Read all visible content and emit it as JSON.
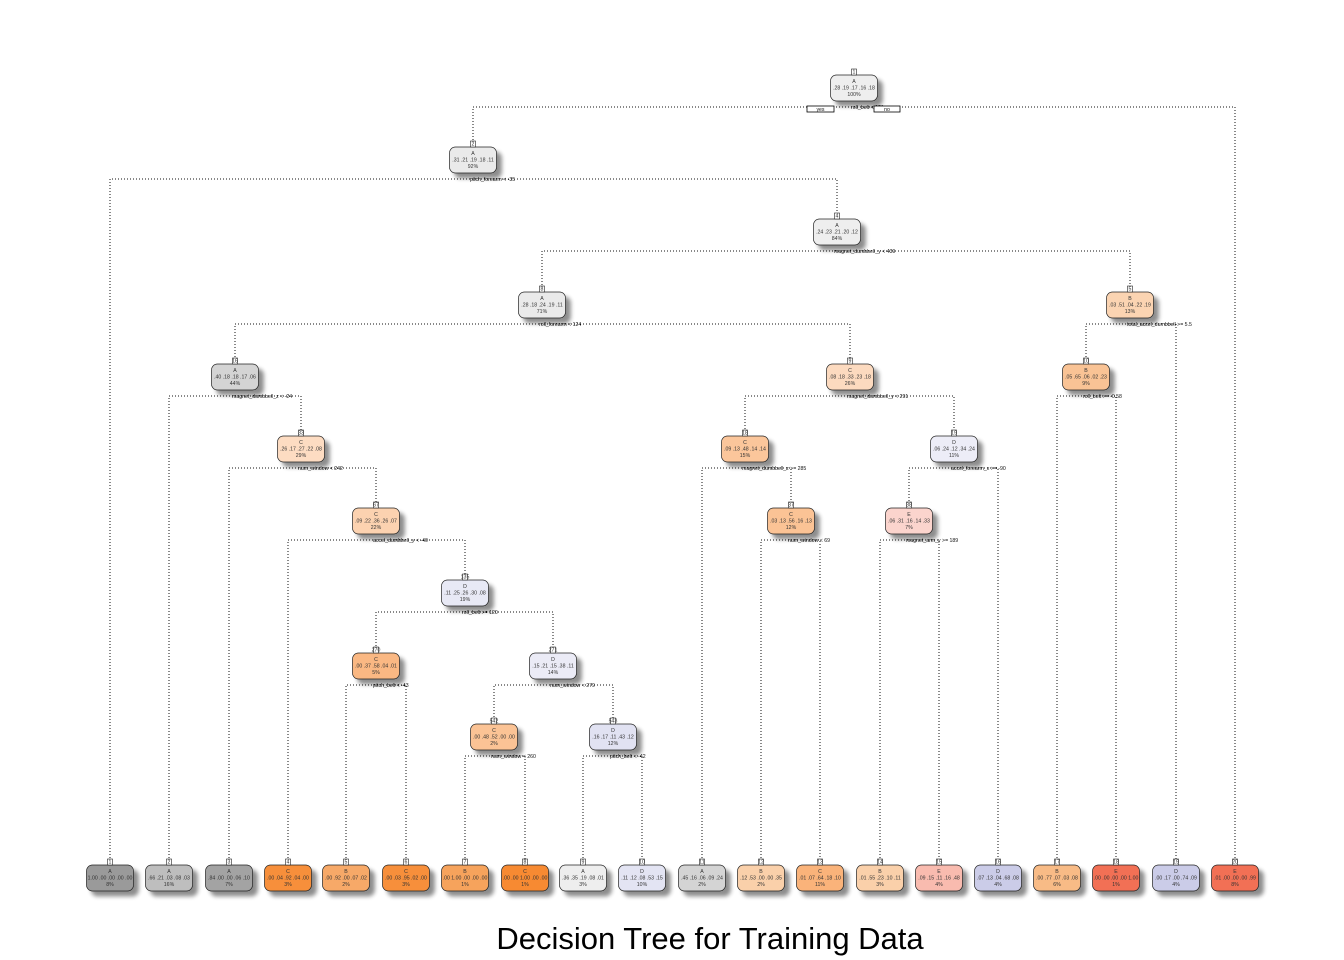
{
  "title": "Decision Tree for Training Data",
  "legend": {
    "yes": "yes",
    "no": "no"
  },
  "class_colors": {
    "A": "#9a9a9a",
    "B": "#f6a35b",
    "C": "#f78a32",
    "D": "#aeb0dc",
    "E": "#f26f55"
  },
  "nodes": [
    {
      "id": "n1",
      "num": "1",
      "cls": "A",
      "probs": ".28 .19 .17 .16 .18",
      "pct": "100%",
      "purity": 0.05
    },
    {
      "id": "n2",
      "num": "2",
      "cls": "A",
      "probs": ".31 .21 .19 .18 .11",
      "pct": "92%",
      "purity": 0.1
    },
    {
      "id": "n4",
      "num": "4",
      "cls": "A",
      "probs": ".24 .23 .21 .20 .12",
      "pct": "84%",
      "purity": 0.05
    },
    {
      "id": "n8",
      "num": "8",
      "cls": "A",
      "probs": ".28 .18 .24 .19 .11",
      "pct": "71%",
      "purity": 0.1
    },
    {
      "id": "n16",
      "num": "16",
      "cls": "A",
      "probs": ".40 .18 .18 .17 .06",
      "pct": "44%",
      "purity": 0.35
    },
    {
      "id": "n33",
      "num": "33",
      "cls": "C",
      "probs": ".26 .17 .27 .22 .08",
      "pct": "29%",
      "purity": 0.2
    },
    {
      "id": "n67",
      "num": "67",
      "cls": "C",
      "probs": ".09 .22 .36 .26 .07",
      "pct": "22%",
      "purity": 0.3
    },
    {
      "id": "n135",
      "num": "135",
      "cls": "D",
      "probs": ".11 .25 .26 .30 .08",
      "pct": "19%",
      "purity": 0.18
    },
    {
      "id": "n270",
      "num": "270",
      "cls": "C",
      "probs": ".00 .37 .58 .04 .01",
      "pct": "5%",
      "purity": 0.55
    },
    {
      "id": "n271",
      "num": "271",
      "cls": "D",
      "probs": ".15 .21 .15 .38 .11",
      "pct": "14%",
      "purity": 0.15
    },
    {
      "id": "n542",
      "num": "542",
      "cls": "C",
      "probs": ".00 .48 .52 .00 .00",
      "pct": "2%",
      "purity": 0.45
    },
    {
      "id": "n543",
      "num": "543",
      "cls": "D",
      "probs": ".16 .17 .11 .43 .12",
      "pct": "12%",
      "purity": 0.28
    },
    {
      "id": "n9",
      "num": "9",
      "cls": "C",
      "probs": ".08 .18 .33 .23 .18",
      "pct": "26%",
      "purity": 0.22
    },
    {
      "id": "n18",
      "num": "18",
      "cls": "C",
      "probs": ".09 .13 .48 .14 .14",
      "pct": "15%",
      "purity": 0.42
    },
    {
      "id": "n37",
      "num": "37",
      "cls": "C",
      "probs": ".03 .13 .56 .16 .13",
      "pct": "12%",
      "purity": 0.45
    },
    {
      "id": "n19",
      "num": "19",
      "cls": "D",
      "probs": ".06 .24 .12 .34 .24",
      "pct": "11%",
      "purity": 0.12
    },
    {
      "id": "n38",
      "num": "38",
      "cls": "E",
      "probs": ".06 .31 .16 .14 .33",
      "pct": "7%",
      "purity": 0.2
    },
    {
      "id": "n5",
      "num": "5",
      "cls": "B",
      "probs": ".03 .51 .04 .22 .19",
      "pct": "13%",
      "purity": 0.4
    },
    {
      "id": "n10",
      "num": "10",
      "cls": "B",
      "probs": ".05 .65 .06 .02 .23",
      "pct": "9%",
      "purity": 0.6
    },
    {
      "id": "n3",
      "num": "3",
      "cls": "E",
      "probs": ".01 .00 .00 .00 .99",
      "pct": "8%",
      "purity": 0.95
    },
    {
      "id": "l1",
      "num": "1",
      "cls": "A",
      "probs": "1.00 .00 .00 .00 .00",
      "pct": "8%",
      "purity": 1.0
    },
    {
      "id": "l2",
      "num": "2",
      "cls": "A",
      "probs": ".66 .21 .03 .08 .03",
      "pct": "16%",
      "purity": 0.6
    },
    {
      "id": "l3",
      "num": "3",
      "cls": "A",
      "probs": ".84 .00 .00 .06 .10",
      "pct": "7%",
      "purity": 0.9
    },
    {
      "id": "l4",
      "num": "4",
      "cls": "C",
      "probs": ".00 .04 .92 .04 .00",
      "pct": "3%",
      "purity": 0.95
    },
    {
      "id": "l5",
      "num": "5",
      "cls": "B",
      "probs": ".00 .92 .00 .07 .02",
      "pct": "2%",
      "purity": 0.92
    },
    {
      "id": "l6",
      "num": "6",
      "cls": "C",
      "probs": ".00 .03 .95 .02 .00",
      "pct": "3%",
      "purity": 0.95
    },
    {
      "id": "l7",
      "num": "7",
      "cls": "B",
      "probs": ".00 1.00 .00 .00 .00",
      "pct": "1%",
      "purity": 1.0
    },
    {
      "id": "l8",
      "num": "8",
      "cls": "C",
      "probs": ".00 .00 1.00 .00 .00",
      "pct": "1%",
      "purity": 1.0
    },
    {
      "id": "l9",
      "num": "9",
      "cls": "A",
      "probs": ".36 .35 .19 .08 .01",
      "pct": "3%",
      "purity": 0.05
    },
    {
      "id": "l10",
      "num": "10",
      "cls": "D",
      "probs": ".11 .12 .08 .53 .15",
      "pct": "10%",
      "purity": 0.25
    },
    {
      "id": "l11",
      "num": "11",
      "cls": "A",
      "probs": ".45 .16 .06 .09 .24",
      "pct": "2%",
      "purity": 0.35
    },
    {
      "id": "l12",
      "num": "12",
      "cls": "B",
      "probs": ".12 .53 .00 .00 .35",
      "pct": "2%",
      "purity": 0.45
    },
    {
      "id": "l13",
      "num": "13",
      "cls": "C",
      "probs": ".01 .07 .64 .18 .10",
      "pct": "11%",
      "purity": 0.6
    },
    {
      "id": "l14",
      "num": "14",
      "cls": "B",
      "probs": ".01 .55 .23 .10 .11",
      "pct": "3%",
      "purity": 0.45
    },
    {
      "id": "l15",
      "num": "15",
      "cls": "E",
      "probs": ".09 .15 .11 .16 .48",
      "pct": "4%",
      "purity": 0.4
    },
    {
      "id": "l16",
      "num": "16",
      "cls": "D",
      "probs": ".07 .13 .04 .68 .08",
      "pct": "4%",
      "purity": 0.6
    },
    {
      "id": "l17",
      "num": "17",
      "cls": "B",
      "probs": ".00 .77 .07 .03 .08",
      "pct": "6%",
      "purity": 0.7
    },
    {
      "id": "l18",
      "num": "18",
      "cls": "E",
      "probs": ".00 .00 .00 .00 1.00",
      "pct": "1%",
      "purity": 1.0
    },
    {
      "id": "l19",
      "num": "19",
      "cls": "D",
      "probs": ".00 .17 .00 .74 .09",
      "pct": "4%",
      "purity": 0.6
    },
    {
      "id": "l20",
      "num": "20",
      "cls": "E",
      "probs": ".01 .00 .00 .00 .99",
      "pct": "8%",
      "purity": 1.0
    }
  ],
  "splits": [
    {
      "node": "n1",
      "label": "roll_belt < 131",
      "left": "n2",
      "right": "n3"
    },
    {
      "node": "n2",
      "label": "pitch_forearm < -35",
      "left": "l1",
      "right": "n4"
    },
    {
      "node": "n4",
      "label": "magnet_dumbbell_y < 439",
      "left": "n8",
      "right": "n5"
    },
    {
      "node": "n8",
      "label": "roll_forearm < 124",
      "left": "n16",
      "right": "n9"
    },
    {
      "node": "n16",
      "label": "magnet_dumbbell_z < -24",
      "left": "l2",
      "right": "n33"
    },
    {
      "node": "n33",
      "label": "num_window < 242",
      "left": "l3",
      "right": "n67"
    },
    {
      "node": "n67",
      "label": "accel_dumbbell_y < -40",
      "left": "l4",
      "right": "n135"
    },
    {
      "node": "n135",
      "label": "roll_belt >= 120",
      "left": "n270",
      "right": "n271"
    },
    {
      "node": "n270",
      "label": "pitch_belt < -43",
      "left": "l5",
      "right": "l6"
    },
    {
      "node": "n271",
      "label": "num_window < 279",
      "left": "n542",
      "right": "n543"
    },
    {
      "node": "n542",
      "label": "num_window < 260",
      "left": "l7",
      "right": "l8"
    },
    {
      "node": "n543",
      "label": "pitch_belt < -42",
      "left": "l9",
      "right": "l10"
    },
    {
      "node": "n9",
      "label": "magnet_dumbbell_y < 291",
      "left": "n18",
      "right": "n19"
    },
    {
      "node": "n18",
      "label": "magnet_dumbbell_z >= 285",
      "left": "l11",
      "right": "n37"
    },
    {
      "node": "n37",
      "label": "num_window < 69",
      "left": "l12",
      "right": "l13"
    },
    {
      "node": "n19",
      "label": "accel_forearm_x >= -90",
      "left": "n38",
      "right": "l16"
    },
    {
      "node": "n38",
      "label": "magnet_arm_y >= 189",
      "left": "l14",
      "right": "l15"
    },
    {
      "node": "n5",
      "label": "total_accel_dumbbell >= 5.5",
      "left": "n10",
      "right": "l19"
    },
    {
      "node": "n10",
      "label": "roll_belt >= -0.58",
      "left": "l17",
      "right": "l18"
    },
    {
      "node": "n3",
      "label": "",
      "left": null,
      "right": null
    }
  ]
}
